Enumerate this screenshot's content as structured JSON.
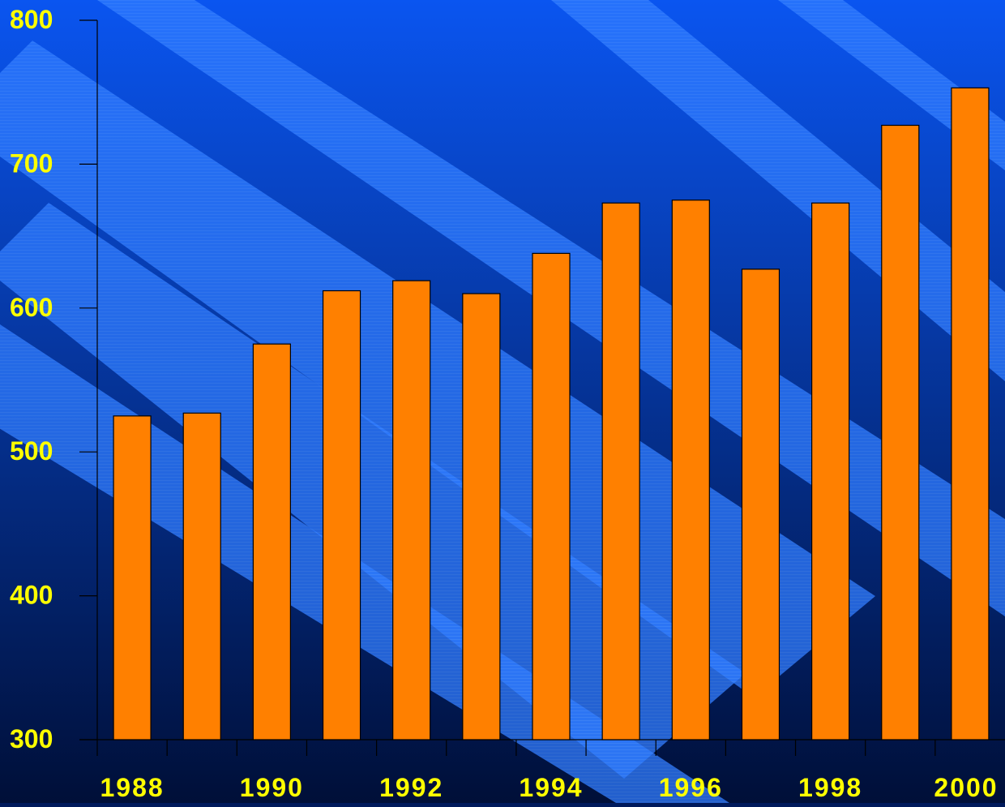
{
  "chart_data": {
    "type": "bar",
    "categories": [
      "1988",
      "1989",
      "1990",
      "1991",
      "1992",
      "1993",
      "1994",
      "1995",
      "1996",
      "1997",
      "1998",
      "1999",
      "2000"
    ],
    "x_tick_labels": [
      "1988",
      "",
      "1990",
      "",
      "1992",
      "",
      "1994",
      "",
      "1996",
      "",
      "1998",
      "",
      "2000"
    ],
    "series": [
      {
        "values": [
          525,
          527,
          575,
          612,
          619,
          610,
          638,
          673,
          675,
          627,
          673,
          727,
          753
        ]
      }
    ],
    "ylim": [
      300,
      800
    ],
    "y_ticks": [
      "300",
      "400",
      "500",
      "600",
      "700",
      "800"
    ],
    "title": "",
    "xlabel": "",
    "ylabel": "",
    "grid": false,
    "colors": {
      "bar_fill": "#ff8000",
      "bar_stroke": "#000000",
      "tick_label": "#ffff00",
      "axis": "#000000",
      "background_top": "#0a55f0",
      "background_bottom": "#000f38",
      "stripe": "#2f7bff"
    }
  }
}
